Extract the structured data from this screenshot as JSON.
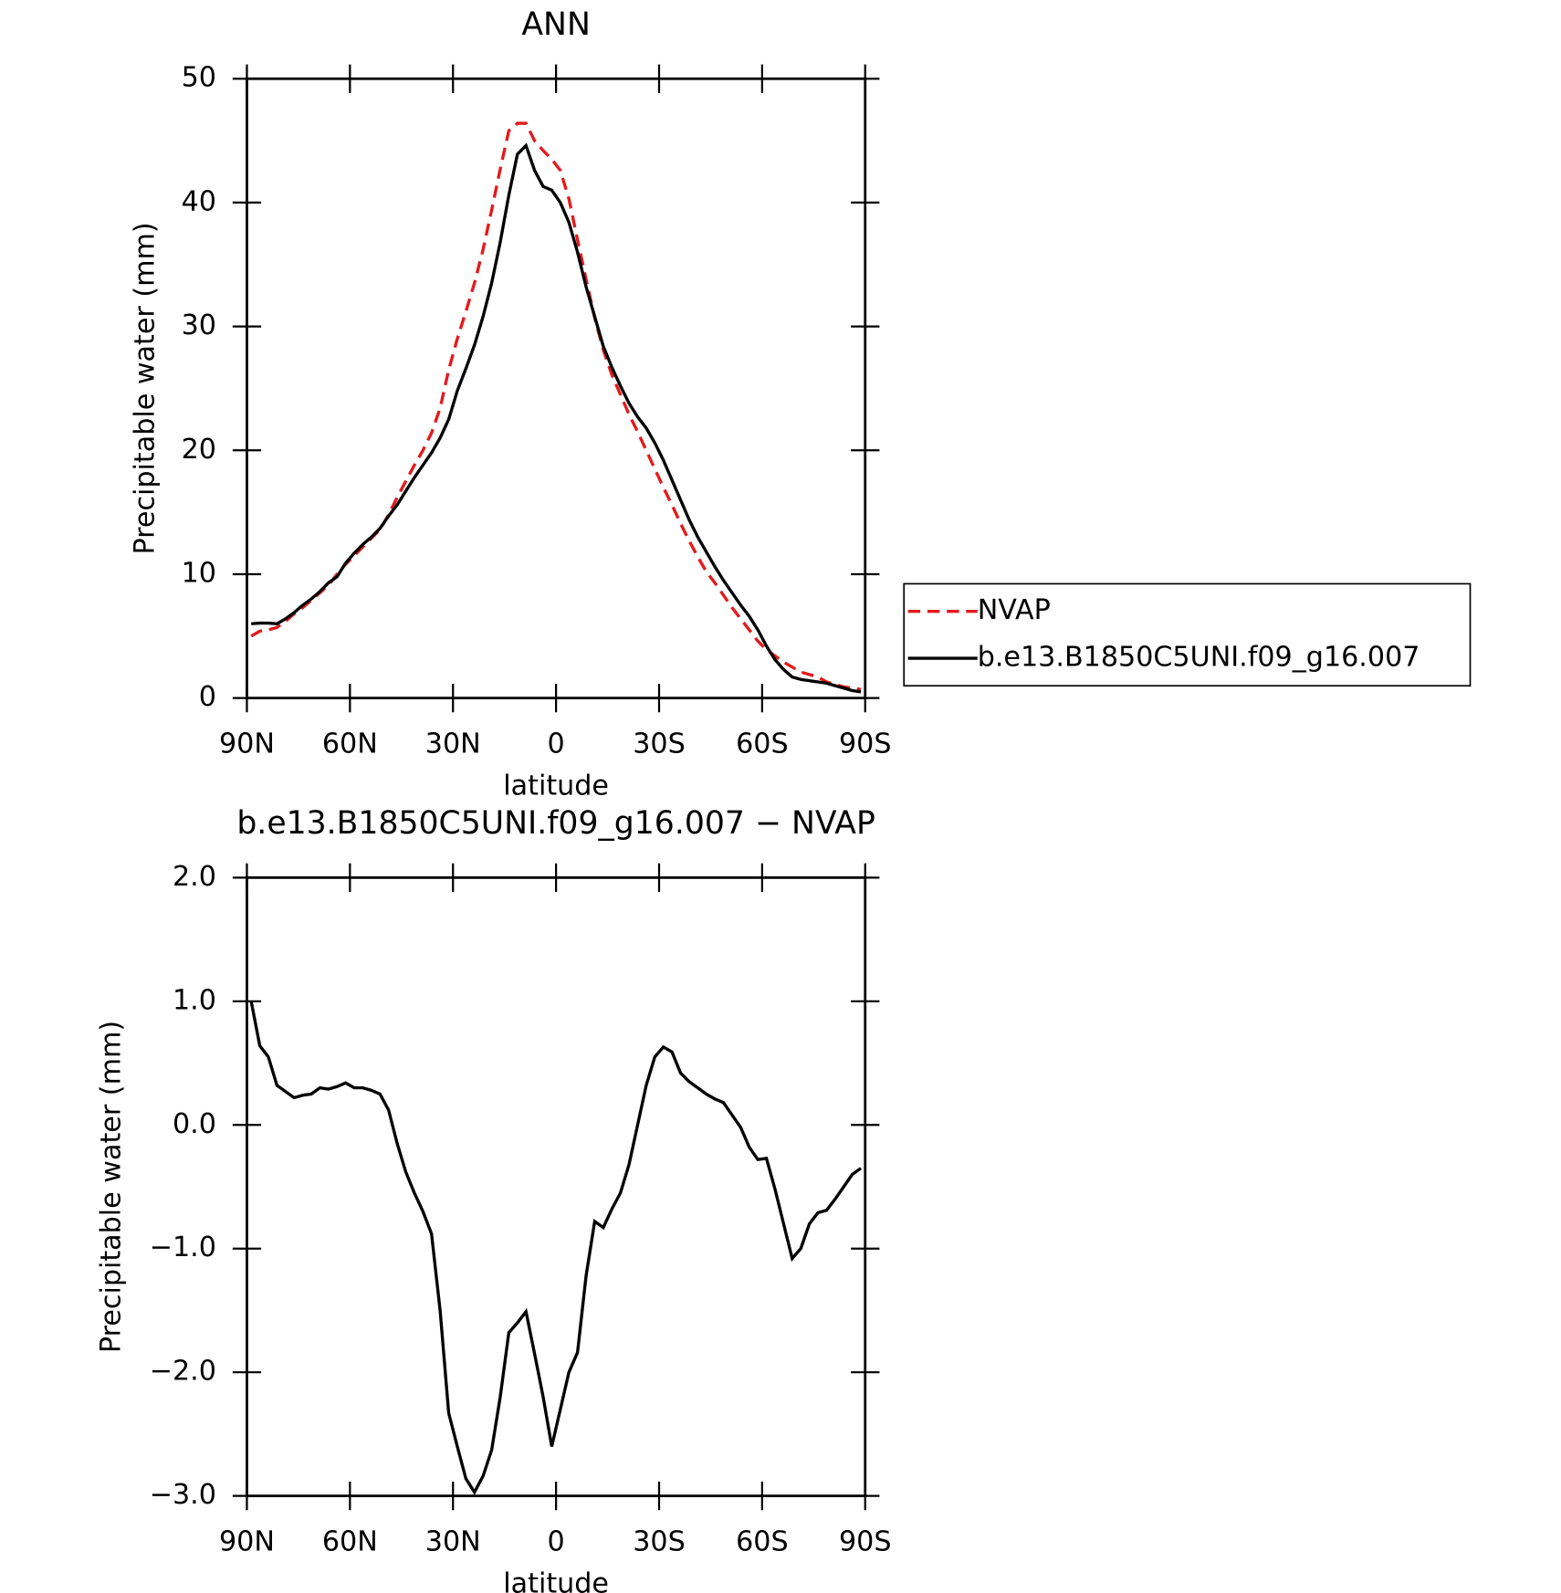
{
  "chart_data": [
    {
      "type": "line",
      "title": "ANN",
      "x_label": "latitude",
      "y_label": "Precipitable water (mm)",
      "x": [
        88.75,
        86.25,
        83.75,
        81.25,
        78.75,
        76.25,
        73.75,
        71.25,
        68.75,
        66.25,
        63.75,
        61.25,
        58.75,
        56.25,
        53.75,
        51.25,
        48.75,
        46.25,
        43.75,
        41.25,
        38.75,
        36.25,
        33.75,
        31.25,
        28.75,
        26.25,
        23.75,
        21.25,
        18.75,
        16.25,
        13.75,
        11.25,
        8.75,
        6.25,
        3.75,
        1.25,
        -1.25,
        -3.75,
        -6.25,
        -8.75,
        -11.25,
        -13.75,
        -16.25,
        -18.75,
        -21.25,
        -23.75,
        -26.25,
        -28.75,
        -31.25,
        -33.75,
        -36.25,
        -38.75,
        -41.25,
        -43.75,
        -46.25,
        -48.75,
        -51.25,
        -53.75,
        -56.25,
        -58.75,
        -61.25,
        -63.75,
        -66.25,
        -68.75,
        -71.25,
        -73.75,
        -76.25,
        -78.75,
        -81.25,
        -83.75,
        -86.25,
        -88.75
      ],
      "series": [
        {
          "name": "NVAP",
          "color": "#e41a1c",
          "dash": true,
          "values": [
            5.0,
            5.4,
            5.5,
            5.7,
            6.2,
            6.8,
            7.3,
            7.9,
            8.5,
            9.1,
            10.0,
            10.8,
            11.5,
            12.2,
            12.9,
            13.6,
            14.8,
            16.2,
            17.5,
            18.8,
            20.0,
            21.4,
            23.4,
            26.5,
            29.0,
            31.2,
            33.5,
            36.2,
            39.4,
            42.7,
            45.8,
            46.4,
            46.4,
            45.0,
            44.2,
            43.5,
            42.6,
            40.3,
            37.0,
            33.8,
            30.7,
            28.1,
            26.1,
            24.5,
            22.9,
            21.5,
            20.0,
            18.5,
            17.0,
            15.6,
            14.1,
            12.7,
            11.4,
            10.2,
            9.3,
            8.3,
            7.3,
            6.4,
            5.5,
            4.6,
            3.9,
            3.4,
            2.9,
            2.5,
            2.1,
            1.9,
            1.7,
            1.3,
            1.1,
            0.9,
            0.8,
            0.7
          ]
        },
        {
          "name": "b.e13.B1850C5UNI.f09_g16.007",
          "color": "#000000",
          "dash": false,
          "values": [
            6.0,
            6.05,
            6.05,
            6.0,
            6.4,
            6.9,
            7.5,
            8.0,
            8.6,
            9.3,
            9.8,
            10.9,
            11.7,
            12.4,
            13.0,
            13.7,
            14.7,
            15.6,
            16.7,
            17.8,
            18.8,
            19.8,
            21.0,
            22.5,
            24.8,
            26.6,
            28.5,
            30.8,
            33.5,
            36.8,
            40.6,
            43.9,
            44.6,
            42.6,
            41.3,
            41.0,
            40.0,
            38.4,
            36.0,
            33.2,
            30.8,
            28.4,
            26.7,
            25.2,
            23.8,
            22.7,
            21.8,
            20.6,
            19.2,
            17.6,
            16.0,
            14.4,
            13.0,
            11.8,
            10.6,
            9.5,
            8.5,
            7.5,
            6.6,
            5.5,
            4.2,
            3.1,
            2.3,
            1.7,
            1.5,
            1.4,
            1.3,
            1.2,
            1.0,
            0.8,
            0.6,
            0.5
          ]
        }
      ],
      "xlim": [
        90,
        -90
      ],
      "xticks": [
        {
          "value": 90,
          "label": "90N"
        },
        {
          "value": 60,
          "label": "60N"
        },
        {
          "value": 30,
          "label": "30N"
        },
        0,
        {
          "value": -30,
          "label": "30S"
        },
        {
          "value": -60,
          "label": "60S"
        },
        {
          "value": -90,
          "label": "90S"
        }
      ],
      "ylim": [
        0,
        50
      ],
      "yticks": [
        0,
        10,
        20,
        30,
        40,
        50
      ],
      "legend": "right"
    },
    {
      "type": "line",
      "title": "b.e13.B1850C5UNI.f09_g16.007 − NVAP",
      "x_label": "latitude",
      "y_label": "Precipitable water (mm)",
      "x": [
        88.75,
        86.25,
        83.75,
        81.25,
        78.75,
        76.25,
        73.75,
        71.25,
        68.75,
        66.25,
        63.75,
        61.25,
        58.75,
        56.25,
        53.75,
        51.25,
        48.75,
        46.25,
        43.75,
        41.25,
        38.75,
        36.25,
        33.75,
        31.25,
        28.75,
        26.25,
        23.75,
        21.25,
        18.75,
        16.25,
        13.75,
        11.25,
        8.75,
        6.25,
        3.75,
        1.25,
        -1.25,
        -3.75,
        -6.25,
        -8.75,
        -11.25,
        -13.75,
        -16.25,
        -18.75,
        -21.25,
        -23.75,
        -26.25,
        -28.75,
        -31.25,
        -33.75,
        -36.25,
        -38.75,
        -41.25,
        -43.75,
        -46.25,
        -48.75,
        -51.25,
        -53.75,
        -56.25,
        -58.75,
        -61.25,
        -63.75,
        -66.25,
        -68.75,
        -71.25,
        -73.75,
        -76.25,
        -78.75,
        -81.25,
        -83.75,
        -86.25,
        -88.75
      ],
      "series": [
        {
          "color": "#000000",
          "dash": false,
          "values": [
            1.0,
            0.64,
            0.55,
            0.32,
            0.27,
            0.22,
            0.24,
            0.25,
            0.3,
            0.29,
            0.31,
            0.34,
            0.3,
            0.3,
            0.28,
            0.25,
            0.12,
            -0.15,
            -0.38,
            -0.55,
            -0.7,
            -0.88,
            -1.5,
            -2.33,
            -2.6,
            -2.86,
            -2.97,
            -2.84,
            -2.63,
            -2.2,
            -1.68,
            -1.6,
            -1.51,
            -1.85,
            -2.2,
            -2.6,
            -2.3,
            -2.0,
            -1.84,
            -1.22,
            -0.78,
            -0.83,
            -0.68,
            -0.55,
            -0.32,
            0.0,
            0.32,
            0.55,
            0.63,
            0.59,
            0.42,
            0.35,
            0.3,
            0.25,
            0.21,
            0.18,
            0.08,
            -0.02,
            -0.18,
            -0.28,
            -0.27,
            -0.52,
            -0.8,
            -1.08,
            -1.0,
            -0.8,
            -0.71,
            -0.69,
            -0.6,
            -0.5,
            -0.4,
            -0.35
          ]
        }
      ],
      "xlim": [
        90,
        -90
      ],
      "xticks": [
        {
          "value": 90,
          "label": "90N"
        },
        {
          "value": 60,
          "label": "60N"
        },
        {
          "value": 30,
          "label": "30N"
        },
        0,
        {
          "value": -30,
          "label": "30S"
        },
        {
          "value": -60,
          "label": "60S"
        },
        {
          "value": -90,
          "label": "90S"
        }
      ],
      "ylim": [
        -3,
        2
      ],
      "yticks": [
        {
          "value": -3,
          "label": "−3.0"
        },
        {
          "value": -2,
          "label": "−2.0"
        },
        {
          "value": -1,
          "label": "−1.0"
        },
        {
          "value": 0,
          "label": "0.0"
        },
        {
          "value": 1,
          "label": "1.0"
        },
        {
          "value": 2,
          "label": "2.0"
        }
      ]
    }
  ]
}
